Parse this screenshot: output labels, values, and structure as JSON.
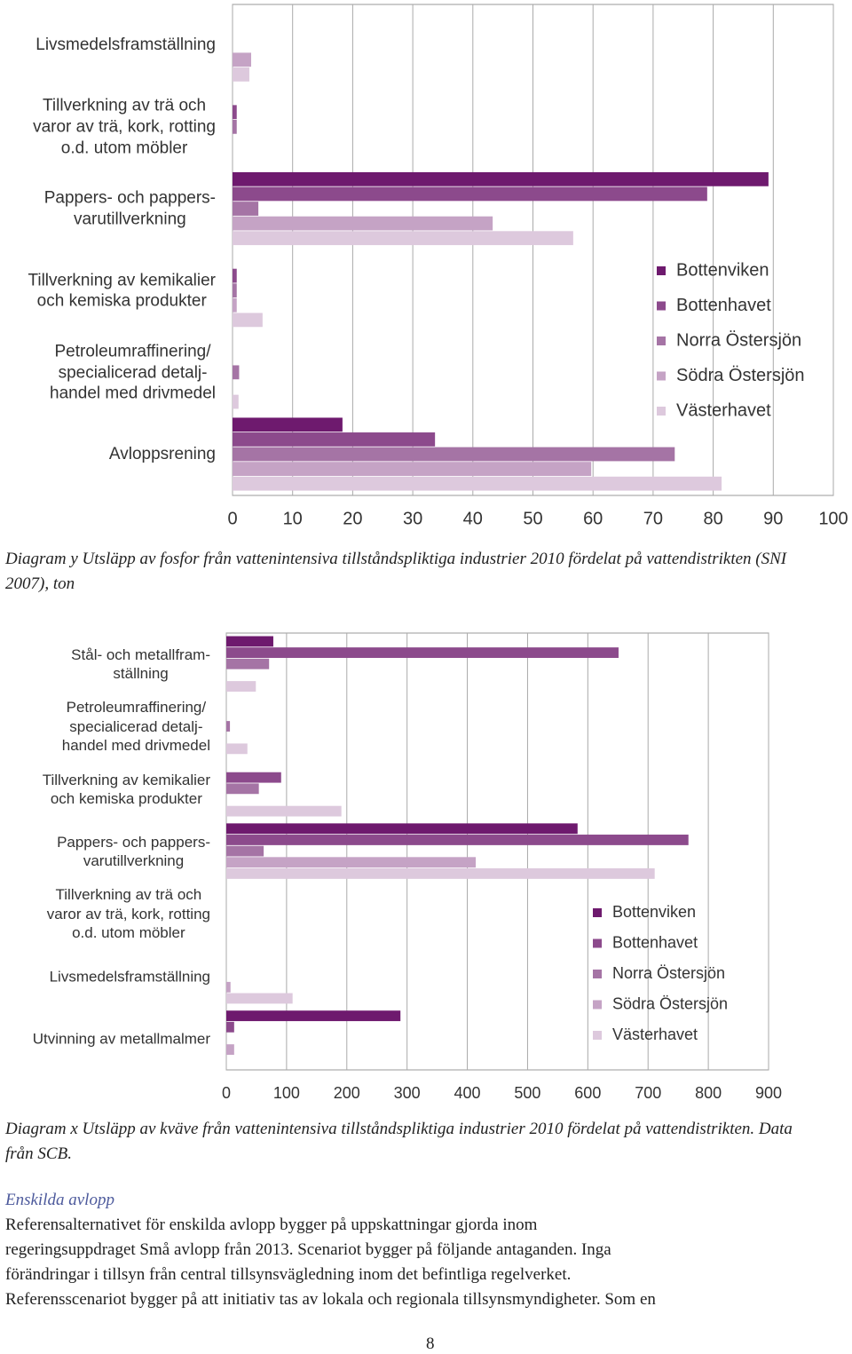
{
  "chart_data": [
    {
      "type": "bar",
      "orientation": "horizontal",
      "caption": "Diagram y Utsläpp av fosfor från vattenintensiva tillståndspliktiga industrier 2010 fördelat på vattendistrikten (SNI 2007), ton",
      "categories": [
        "Livsmedelsframställning",
        "Tillverkning av trä och\nvaror av trä, kork, rotting\no.d. utom möbler",
        "Pappers- och pappers-\nvarutillverkning",
        "Tillverkning av kemikalier\noch kemiska produkter",
        "Petroleumraffinering/\nspecialicerad detalj-\nhandel med drivmedel",
        "Avloppsrening"
      ],
      "series": [
        {
          "name": "Bottenviken",
          "color": "#6e1a6e",
          "values": [
            0,
            0,
            89.2,
            0,
            0,
            18.3
          ]
        },
        {
          "name": "Bottenhavet",
          "color": "#8c4a8c",
          "values": [
            0,
            0.7,
            79,
            0.7,
            0,
            33.7
          ]
        },
        {
          "name": "Norra Östersjön",
          "color": "#a574a5",
          "values": [
            0,
            0.7,
            4.3,
            0.7,
            1.1,
            73.6
          ]
        },
        {
          "name": "Södra Östersjön",
          "color": "#c5a3c5",
          "values": [
            3.1,
            0,
            43.3,
            0.7,
            0,
            59.7
          ]
        },
        {
          "name": "Västerhavet",
          "color": "#ddc9dd",
          "values": [
            2.8,
            0,
            56.7,
            5,
            1,
            81.4
          ]
        }
      ],
      "xlim": [
        0,
        100
      ],
      "xticks": [
        0,
        10,
        20,
        30,
        40,
        50,
        60,
        70,
        80,
        90,
        100
      ],
      "grid": true,
      "legend": "right"
    },
    {
      "type": "bar",
      "orientation": "horizontal",
      "caption": "Diagram x Utsläpp av kväve från vattenintensiva tillståndspliktiga industrier 2010 fördelat på vattendistrikten. Data från SCB.",
      "categories": [
        "Stål- och metallfram-\nställning",
        "Petroleumraffinering/\nspecialicerad detalj-\nhandel med drivmedel",
        "Tillverkning av kemikalier\noch kemiska produkter",
        "Pappers- och pappers-\nvarutillverkning",
        "Tillverkning av trä och\nvaror av trä, kork, rotting\no.d. utom möbler",
        "Livsmedelsframställning",
        "Utvinning av metallmalmer"
      ],
      "series": [
        {
          "name": "Bottenviken",
          "color": "#6e1a6e",
          "values": [
            78,
            0,
            0,
            583,
            0,
            0,
            289
          ]
        },
        {
          "name": "Bottenhavet",
          "color": "#8c4a8c",
          "values": [
            651,
            0,
            91,
            767,
            0,
            0,
            13
          ]
        },
        {
          "name": "Norra Östersjön",
          "color": "#a574a5",
          "values": [
            71,
            6,
            54,
            62,
            0,
            0,
            0
          ]
        },
        {
          "name": "Södra Östersjön",
          "color": "#c5a3c5",
          "values": [
            0,
            0,
            0,
            414,
            0,
            7,
            13
          ]
        },
        {
          "name": "Västerhavet",
          "color": "#ddc9dd",
          "values": [
            49,
            35,
            191,
            711,
            0,
            110,
            0
          ]
        }
      ],
      "xlim": [
        0,
        900
      ],
      "xticks": [
        0,
        100,
        200,
        300,
        400,
        500,
        600,
        700,
        800,
        900
      ],
      "grid": true,
      "legend": "right"
    }
  ],
  "section": {
    "heading": "Enskilda avlopp",
    "lines": [
      "Referensalternativet för enskilda avlopp bygger på uppskattningar gjorda inom",
      "regeringsuppdraget Små avlopp från 2013. Scenariot bygger på följande antaganden. Inga",
      "förändringar i tillsyn från central tillsynsvägledning inom det befintliga regelverket.",
      "Referensscenariot bygger på att initiativ tas av lokala och regionala tillsynsmyndigheter. Som en"
    ]
  },
  "page_number": "8"
}
